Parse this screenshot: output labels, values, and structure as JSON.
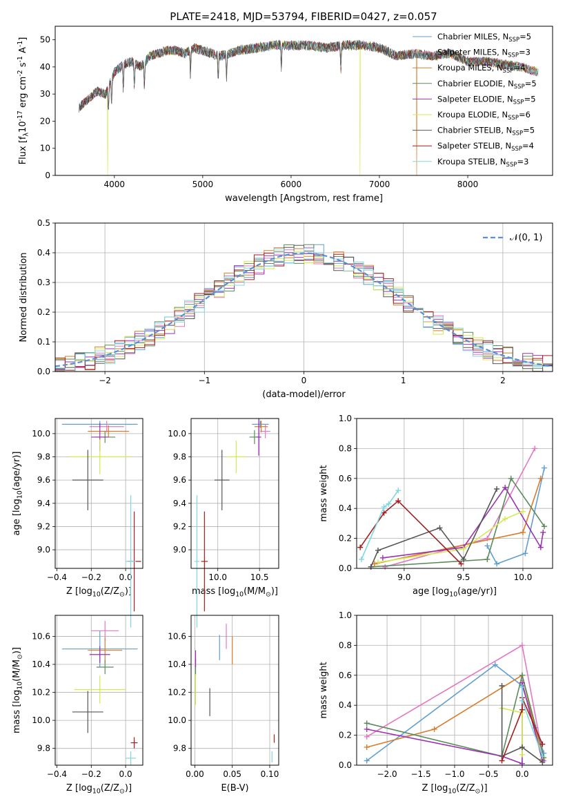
{
  "figure": {
    "title": "PLATE=2418, MJD=53794, FIBERID=0427, z=0.057"
  },
  "series_styles": [
    {
      "label": "Chabrier MILES, N$_{SSP}$=5",
      "label_main": "Chabrier MILES, N",
      "label_sub": "SSP",
      "label_tail": "=5",
      "color": "#5f9ed1"
    },
    {
      "label": "Salpeter MILES, N$_{SSP}$=3",
      "label_main": "Salpeter MILES, N",
      "label_sub": "SSP",
      "label_tail": "=3",
      "color": "#e377c2"
    },
    {
      "label": "Kroupa MILES, N$_{SSP}$=4",
      "label_main": "Kroupa MILES, N",
      "label_sub": "SSP",
      "label_tail": "=4",
      "color": "#d97b2a"
    },
    {
      "label": "Chabrier ELODIE, N$_{SSP}$=5",
      "label_main": "Chabrier ELODIE, N",
      "label_sub": "SSP",
      "label_tail": "=5",
      "color": "#5a8a5a"
    },
    {
      "label": "Salpeter ELODIE, N$_{SSP}$=5",
      "label_main": "Salpeter ELODIE, N",
      "label_sub": "SSP",
      "label_tail": "=5",
      "color": "#9b30b0"
    },
    {
      "label": "Kroupa ELODIE, N$_{SSP}$=6",
      "label_main": "Kroupa ELODIE, N",
      "label_sub": "SSP",
      "label_tail": "=6",
      "color": "#d4e84f"
    },
    {
      "label": "Chabrier STELIB, N$_{SSP}$=5",
      "label_main": "Chabrier STELIB, N",
      "label_sub": "SSP",
      "label_tail": "=5",
      "color": "#555555"
    },
    {
      "label": "Salpeter STELIB, N$_{SSP}$=4",
      "label_main": "Salpeter STELIB, N",
      "label_sub": "SSP",
      "label_tail": "=4",
      "color": "#a51c1c"
    },
    {
      "label": "Kroupa STELIB, N$_{SSP}$=3",
      "label_main": "Kroupa STELIB, N",
      "label_sub": "SSP",
      "label_tail": "=3",
      "color": "#7fd8dd"
    }
  ],
  "chart_data": [
    {
      "id": "spectrum",
      "type": "line",
      "xlabel": "wavelength [Angstrom, rest frame]",
      "ylabel": "Flux [f$_\\lambda$10$^{-17}$ erg cm$^{-2}$ s$^{-1}$ A$^{-1}$]",
      "xlim": [
        3330,
        8960
      ],
      "ylim": [
        0,
        55
      ],
      "xticks": [
        4000,
        5000,
        6000,
        7000,
        8000
      ],
      "yticks": [
        0,
        10,
        20,
        30,
        40,
        50
      ],
      "grid": false,
      "legend_position": "upper right",
      "continuum": {
        "x": [
          3600,
          3700,
          3800,
          3900,
          4000,
          4100,
          4200,
          4300,
          4400,
          4500,
          4600,
          4700,
          4800,
          4900,
          5000,
          5200,
          5400,
          5600,
          5800,
          6000,
          6200,
          6400,
          6600,
          6800,
          7000,
          7200,
          7400,
          7600,
          7800,
          8000,
          8200,
          8400,
          8600,
          8800
        ],
        "y": [
          25,
          28,
          31,
          30,
          38,
          41,
          42,
          40,
          44,
          45,
          46,
          46,
          45,
          47,
          46,
          44,
          46,
          47,
          48,
          48,
          48,
          47,
          48,
          48,
          47,
          44,
          45,
          44,
          45,
          42,
          42,
          41,
          40,
          38
        ]
      },
      "model_range": [
        3600,
        8800
      ],
      "data_range": [
        3600,
        8550
      ],
      "absorption_lines": [
        3933,
        3968,
        4101,
        4226,
        4340,
        4861,
        5175,
        5270,
        5890,
        6563
      ],
      "gaps": [
        {
          "x": 3925,
          "series": 5
        },
        {
          "x": 6780,
          "series": 5
        },
        {
          "x": 7420,
          "series": 2
        }
      ]
    },
    {
      "id": "residuals",
      "type": "histogram",
      "xlabel": "(data-model)/error",
      "ylabel": "Normed distribution",
      "xlim": [
        -2.5,
        2.5
      ],
      "ylim": [
        0,
        0.5
      ],
      "xticks": [
        -2,
        -1,
        0,
        1,
        2
      ],
      "xtick_labels": [
        "−2",
        "−1",
        "0",
        "1",
        "2"
      ],
      "yticks": [
        0,
        0.1,
        0.2,
        0.3,
        0.4,
        0.5
      ],
      "ytick_labels": [
        "0.0",
        "0.1",
        "0.2",
        "0.3",
        "0.4",
        "0.5"
      ],
      "grid": true,
      "bin_width": 0.1,
      "reference_label": "𝒩(0, 1)",
      "reference_color": "#5a8fd6"
    },
    {
      "id": "age-vs-Z",
      "type": "scatter",
      "xlabel": "Z [log$_{10}$(Z/Z$_\\odot$)]",
      "ylabel": "age  [log$_{10}$(age/yr)]",
      "xlim": [
        -0.41,
        0.1
      ],
      "ylim": [
        8.84,
        10.13
      ],
      "xticks": [
        -0.4,
        -0.2,
        0.0
      ],
      "xtick_labels": [
        "−0.4",
        "−0.2",
        "0.0"
      ],
      "yticks": [
        9.0,
        9.2,
        9.4,
        9.6,
        9.8,
        10.0
      ],
      "ytick_labels": [
        "9.0",
        "9.2",
        "9.4",
        "9.6",
        "9.8",
        "10.0"
      ],
      "grid": true,
      "points": [
        {
          "s": 0,
          "x": -0.15,
          "y": 10.08,
          "xerr": 0.22,
          "yerr": 0.03
        },
        {
          "s": 1,
          "x": -0.11,
          "y": 10.06,
          "xerr": 0.1,
          "yerr": 0.05
        },
        {
          "s": 2,
          "x": -0.1,
          "y": 10.02,
          "xerr": 0.12,
          "yerr": 0.05
        },
        {
          "s": 3,
          "x": -0.12,
          "y": 9.97,
          "xerr": 0.06,
          "yerr": 0.05
        },
        {
          "s": 4,
          "x": -0.15,
          "y": 9.97,
          "xerr": 0.05,
          "yerr": 0.12
        },
        {
          "s": 5,
          "x": -0.15,
          "y": 9.8,
          "xerr": 0.18,
          "yerr": 0.15
        },
        {
          "s": 6,
          "x": -0.22,
          "y": 9.6,
          "xerr": 0.09,
          "yerr": 0.26
        },
        {
          "s": 7,
          "x": 0.05,
          "y": 8.9,
          "xerr": 0.04,
          "yerr": 0.43
        },
        {
          "s": 8,
          "x": 0.03,
          "y": 8.9,
          "xerr": 0.03,
          "yerr": 0.57
        }
      ]
    },
    {
      "id": "age-vs-mass",
      "type": "scatter",
      "xlabel": "mass [log$_{10}$(M/M$_\\odot$)]",
      "ylabel": "",
      "xlim": [
        9.68,
        10.73
      ],
      "ylim": [
        8.84,
        10.13
      ],
      "xticks": [
        10.0,
        10.5
      ],
      "xtick_labels": [
        "10.0",
        "10.5"
      ],
      "yticks": [
        9.0,
        9.2,
        9.4,
        9.6,
        9.8,
        10.0
      ],
      "ytick_labels": [
        "9.0",
        "9.2",
        "9.4",
        "9.6",
        "9.8",
        "10.0"
      ],
      "grid": true,
      "points": [
        {
          "s": 0,
          "x": 10.51,
          "y": 10.08,
          "xerr": 0.1,
          "yerr": 0.03
        },
        {
          "s": 1,
          "x": 10.57,
          "y": 10.02,
          "xerr": 0.06,
          "yerr": 0.06
        },
        {
          "s": 2,
          "x": 10.52,
          "y": 10.06,
          "xerr": 0.08,
          "yerr": 0.05
        },
        {
          "s": 3,
          "x": 10.44,
          "y": 9.97,
          "xerr": 0.06,
          "yerr": 0.06
        },
        {
          "s": 4,
          "x": 10.49,
          "y": 9.97,
          "xerr": 0.03,
          "yerr": 0.16
        },
        {
          "s": 5,
          "x": 10.22,
          "y": 9.8,
          "xerr": 0.12,
          "yerr": 0.14
        },
        {
          "s": 6,
          "x": 10.05,
          "y": 9.6,
          "xerr": 0.09,
          "yerr": 0.26
        },
        {
          "s": 7,
          "x": 9.84,
          "y": 8.9,
          "xerr": 0.04,
          "yerr": 0.43
        },
        {
          "s": 8,
          "x": 9.75,
          "y": 8.9,
          "xerr": 0.03,
          "yerr": 0.57
        }
      ]
    },
    {
      "id": "weight-vs-age",
      "type": "line",
      "xlabel": "age  [log$_{10}$(age/yr)]",
      "ylabel": "mass weight",
      "xlim": [
        8.6,
        10.25
      ],
      "ylim": [
        0,
        1
      ],
      "xticks": [
        9.0,
        9.5,
        10.0
      ],
      "xtick_labels": [
        "9.0",
        "9.5",
        "10.0"
      ],
      "yticks": [
        0,
        0.2,
        0.4,
        0.6,
        0.8,
        1.0
      ],
      "ytick_labels": [
        "0.0",
        "0.2",
        "0.4",
        "0.6",
        "0.8",
        "1.0"
      ],
      "grid": true,
      "series": [
        {
          "s": 0,
          "points": [
            [
              9.7,
              0.15
            ],
            [
              9.78,
              0.03
            ],
            [
              10.02,
              0.1
            ],
            [
              10.18,
              0.67
            ]
          ]
        },
        {
          "s": 1,
          "points": [
            [
              8.84,
              0.01
            ],
            [
              9.7,
              0.2
            ],
            [
              10.1,
              0.8
            ]
          ]
        },
        {
          "s": 2,
          "points": [
            [
              8.75,
              0.03
            ],
            [
              10.0,
              0.24
            ],
            [
              10.15,
              0.6
            ]
          ]
        },
        {
          "s": 3,
          "points": [
            [
              8.72,
              0.01
            ],
            [
              9.7,
              0.06
            ],
            [
              9.9,
              0.6
            ],
            [
              10.18,
              0.28
            ]
          ]
        },
        {
          "s": 4,
          "points": [
            [
              8.82,
              0.07
            ],
            [
              9.5,
              0.14
            ],
            [
              9.85,
              0.54
            ],
            [
              10.15,
              0.14
            ],
            [
              10.17,
              0.24
            ]
          ]
        },
        {
          "s": 5,
          "points": [
            [
              8.78,
              0.04
            ],
            [
              9.5,
              0.13
            ],
            [
              9.85,
              0.33
            ],
            [
              10.0,
              0.38
            ]
          ]
        },
        {
          "s": 6,
          "points": [
            [
              8.72,
              0.01
            ],
            [
              8.78,
              0.12
            ],
            [
              9.3,
              0.27
            ],
            [
              9.5,
              0.06
            ],
            [
              9.78,
              0.53
            ]
          ]
        },
        {
          "s": 7,
          "points": [
            [
              8.63,
              0.14
            ],
            [
              8.83,
              0.37
            ],
            [
              8.95,
              0.45
            ],
            [
              9.48,
              0.03
            ]
          ]
        },
        {
          "s": 8,
          "points": [
            [
              8.64,
              0.06
            ],
            [
              8.83,
              0.41
            ],
            [
              8.87,
              0.43
            ],
            [
              8.95,
              0.52
            ]
          ]
        }
      ]
    },
    {
      "id": "mass-vs-Z",
      "type": "scatter",
      "xlabel": "Z [log$_{10}$(Z/Z$_\\odot$)]",
      "ylabel": "mass [log$_{10}$(M/M$_\\odot$)]",
      "xlim": [
        -0.41,
        0.1
      ],
      "ylim": [
        9.68,
        10.75
      ],
      "xticks": [
        -0.4,
        -0.2,
        0.0
      ],
      "xtick_labels": [
        "−0.4",
        "−0.2",
        "0.0"
      ],
      "yticks": [
        9.8,
        10.0,
        10.2,
        10.4,
        10.6
      ],
      "ytick_labels": [
        "9.8",
        "10.0",
        "10.2",
        "10.4",
        "10.6"
      ],
      "grid": true,
      "points": [
        {
          "s": 0,
          "x": -0.15,
          "y": 10.51,
          "xerr": 0.22,
          "yerr": 0.13
        },
        {
          "s": 1,
          "x": -0.12,
          "y": 10.64,
          "xerr": 0.08,
          "yerr": 0.07
        },
        {
          "s": 2,
          "x": -0.12,
          "y": 10.5,
          "xerr": 0.1,
          "yerr": 0.09
        },
        {
          "s": 3,
          "x": -0.12,
          "y": 10.38,
          "xerr": 0.05,
          "yerr": 0.05
        },
        {
          "s": 4,
          "x": -0.15,
          "y": 10.47,
          "xerr": 0.06,
          "yerr": 0.06
        },
        {
          "s": 5,
          "x": -0.15,
          "y": 10.22,
          "xerr": 0.15,
          "yerr": 0.1
        },
        {
          "s": 6,
          "x": -0.22,
          "y": 10.06,
          "xerr": 0.09,
          "yerr": 0.15
        },
        {
          "s": 7,
          "x": 0.05,
          "y": 9.84,
          "xerr": 0.02,
          "yerr": 0.04
        },
        {
          "s": 8,
          "x": 0.03,
          "y": 9.73,
          "xerr": 0.03,
          "yerr": 0.05
        }
      ]
    },
    {
      "id": "mass-vs-EBV",
      "type": "scatter",
      "xlabel": "E(B-V)",
      "ylabel": "",
      "xlim": [
        -0.005,
        0.112
      ],
      "ylim": [
        9.68,
        10.75
      ],
      "xticks": [
        0.0,
        0.05,
        0.1
      ],
      "xtick_labels": [
        "0.00",
        "0.05",
        "0.10"
      ],
      "yticks": [
        9.8,
        10.0,
        10.2,
        10.4,
        10.6
      ],
      "ytick_labels": [
        "9.8",
        "10.0",
        "10.2",
        "10.4",
        "10.6"
      ],
      "grid": true,
      "points": [
        {
          "s": 0,
          "x": 0.033,
          "y": 10.52,
          "xerr": 0,
          "yerr": 0.09
        },
        {
          "s": 1,
          "x": 0.042,
          "y": 10.6,
          "xerr": 0,
          "yerr": 0.09
        },
        {
          "s": 2,
          "x": 0.05,
          "y": 10.5,
          "xerr": 0,
          "yerr": 0.1
        },
        {
          "s": 3,
          "x": 0.001,
          "y": 10.38,
          "xerr": 0,
          "yerr": 0.06
        },
        {
          "s": 4,
          "x": 0.001,
          "y": 10.44,
          "xerr": 0,
          "yerr": 0.06
        },
        {
          "s": 5,
          "x": 0.001,
          "y": 10.22,
          "xerr": 0,
          "yerr": 0.11
        },
        {
          "s": 6,
          "x": 0.02,
          "y": 10.13,
          "xerr": 0,
          "yerr": 0.1
        },
        {
          "s": 7,
          "x": 0.106,
          "y": 9.87,
          "xerr": 0,
          "yerr": 0.03
        },
        {
          "s": 8,
          "x": 0.103,
          "y": 9.74,
          "xerr": 0,
          "yerr": 0.04
        }
      ]
    },
    {
      "id": "weight-vs-Z",
      "type": "line",
      "xlabel": "Z [log$_{10}$(Z/Z$_\\odot$)]",
      "ylabel": "mass weight",
      "xlim": [
        -2.45,
        0.45
      ],
      "ylim": [
        0,
        1
      ],
      "xticks": [
        -2.0,
        -1.5,
        -1.0,
        -0.5,
        0.0
      ],
      "xtick_labels": [
        "−2.0",
        "−1.5",
        "−1.0",
        "−0.5",
        "0.0"
      ],
      "yticks": [
        0,
        0.2,
        0.4,
        0.6,
        0.8,
        1.0
      ],
      "ytick_labels": [
        "0.0",
        "0.2",
        "0.4",
        "0.6",
        "0.8",
        "1.0"
      ],
      "grid": true,
      "series": [
        {
          "s": 0,
          "points": [
            [
              -2.3,
              0.03
            ],
            [
              -0.4,
              0.67
            ],
            [
              0.0,
              0.53
            ],
            [
              0.2,
              0.25
            ],
            [
              0.32,
              0.08
            ]
          ]
        },
        {
          "s": 1,
          "points": [
            [
              -2.3,
              0.19
            ],
            [
              0.0,
              0.8
            ],
            [
              0.32,
              0.03
            ]
          ]
        },
        {
          "s": 2,
          "points": [
            [
              -2.3,
              0.12
            ],
            [
              -1.3,
              0.24
            ],
            [
              0.0,
              0.6
            ],
            [
              0.3,
              0.04
            ]
          ]
        },
        {
          "s": 3,
          "points": [
            [
              -2.3,
              0.28
            ],
            [
              -0.3,
              0.06
            ],
            [
              0.0,
              0.6
            ],
            [
              0.32,
              0.05
            ]
          ]
        },
        {
          "s": 4,
          "points": [
            [
              -2.3,
              0.24
            ],
            [
              -0.3,
              0.06
            ],
            [
              0.0,
              0.01
            ],
            [
              0.0,
              0.55
            ],
            [
              0.3,
              0.03
            ]
          ]
        },
        {
          "s": 5,
          "points": [
            [
              -0.3,
              0.38
            ],
            [
              0.0,
              0.35
            ],
            [
              0.0,
              0.07
            ]
          ]
        },
        {
          "s": 6,
          "points": [
            [
              -0.3,
              0.53
            ],
            [
              -0.3,
              0.06
            ],
            [
              0.0,
              0.12
            ],
            [
              0.3,
              0.02
            ]
          ]
        },
        {
          "s": 7,
          "points": [
            [
              -0.3,
              0.03
            ],
            [
              0.0,
              0.37
            ],
            [
              0.0,
              0.45
            ],
            [
              0.3,
              0.14
            ]
          ]
        },
        {
          "s": 8,
          "points": [
            [
              0.0,
              0.52
            ],
            [
              0.0,
              0.43
            ],
            [
              0.3,
              0.06
            ]
          ]
        }
      ]
    }
  ]
}
